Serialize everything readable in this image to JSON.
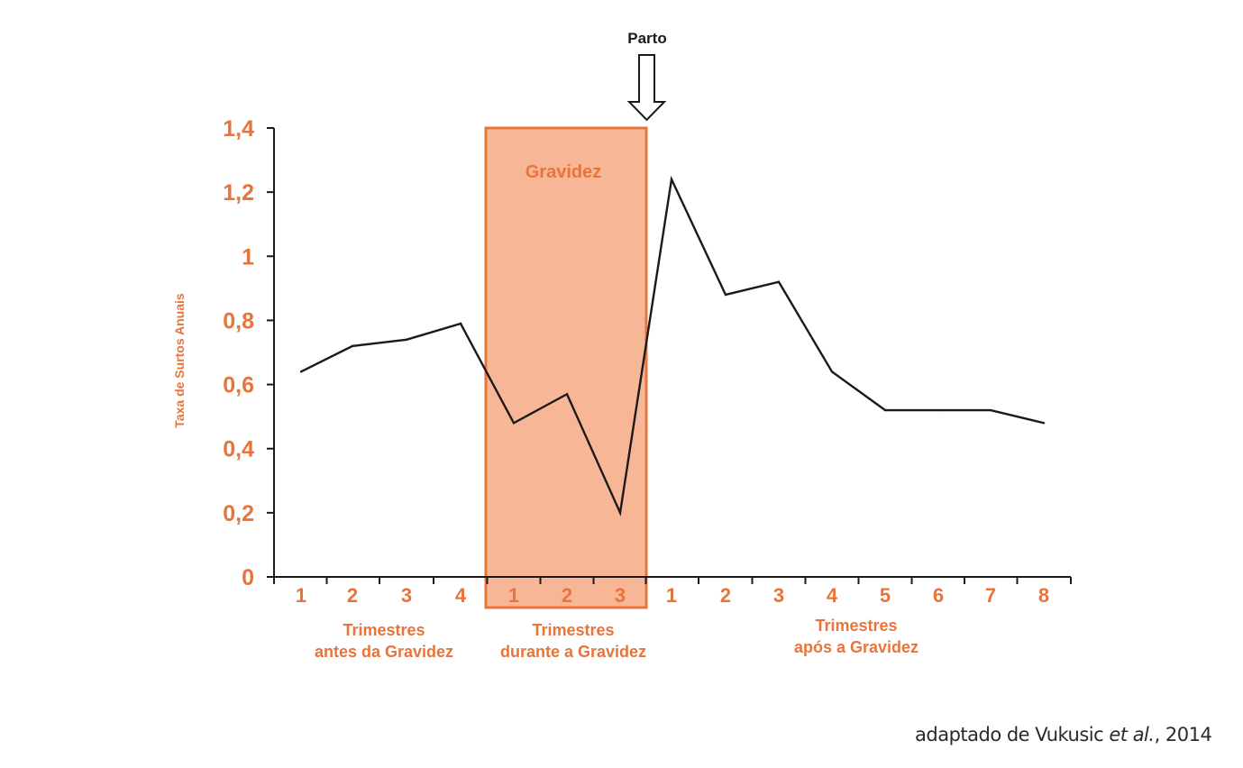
{
  "colors": {
    "accent": "#e8743b",
    "box_fill": "#f7b797",
    "line": "#1a1a1a",
    "axis": "#1a1a1a"
  },
  "chart_data": {
    "type": "line",
    "ylabel": "Taxa de Surtos Anuais",
    "ylim": [
      0,
      1.4
    ],
    "y_ticks": [
      "0",
      "0,2",
      "0,4",
      "0,6",
      "0,8",
      "1",
      "1,2",
      "1,4"
    ],
    "y_tick_values": [
      0,
      0.2,
      0.4,
      0.6,
      0.8,
      1.0,
      1.2,
      1.4
    ],
    "grid": false,
    "x_tick_labels": [
      "1",
      "2",
      "3",
      "4",
      "1",
      "2",
      "3",
      "1",
      "2",
      "3",
      "4",
      "5",
      "6",
      "7",
      "8"
    ],
    "groups": [
      {
        "line1": "Trimestres",
        "line2": "antes da Gravidez"
      },
      {
        "line1": "Trimestres",
        "line2": "durante a Gravidez"
      },
      {
        "line1": "Trimestres",
        "line2": "após a Gravidez"
      }
    ],
    "values": [
      0.64,
      0.72,
      0.74,
      0.79,
      0.48,
      0.57,
      0.2,
      1.24,
      0.88,
      0.92,
      0.64,
      0.52,
      0.52,
      0.52,
      0.48
    ],
    "pregnancy_box_label": "Gravidez",
    "delivery_arrow_label": "Parto"
  },
  "source": {
    "prefix": "adaptado de Vukusic ",
    "etal": "et al.",
    "suffix": ", 2014"
  }
}
